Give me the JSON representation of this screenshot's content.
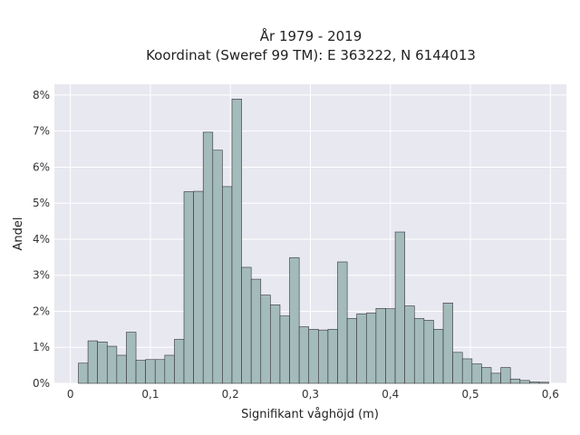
{
  "chart_data": {
    "type": "bar",
    "title": "År 1979 - 2019",
    "subtitle": "Koordinat (Sweref 99 TM): E 363222, N 6144013",
    "xlabel": "Signifikant våghöjd (m)",
    "ylabel": "Andel",
    "xlim": [
      -0.02,
      0.62
    ],
    "ylim": [
      0,
      8.3
    ],
    "x_ticks": [
      0,
      0.1,
      0.2,
      0.3,
      0.4,
      0.5,
      0.6
    ],
    "x_tick_labels": [
      "0",
      "0,1",
      "0,2",
      "0,3",
      "0,4",
      "0,5",
      "0,6"
    ],
    "y_ticks": [
      0,
      1,
      2,
      3,
      4,
      5,
      6,
      7,
      8
    ],
    "y_tick_labels": [
      "0%",
      "1%",
      "2%",
      "3%",
      "4%",
      "5%",
      "6%",
      "7%",
      "8%"
    ],
    "bin_width": 0.012,
    "bins_start": [
      0.01,
      0.022,
      0.034,
      0.046,
      0.058,
      0.07,
      0.082,
      0.094,
      0.106,
      0.118,
      0.13,
      0.142,
      0.154,
      0.166,
      0.178,
      0.19,
      0.202,
      0.214,
      0.226,
      0.238,
      0.25,
      0.262,
      0.274,
      0.286,
      0.298,
      0.31,
      0.322,
      0.334,
      0.346,
      0.358,
      0.37,
      0.382,
      0.394,
      0.406,
      0.418,
      0.43,
      0.442,
      0.454,
      0.466,
      0.478,
      0.49,
      0.502,
      0.514,
      0.526,
      0.538,
      0.55,
      0.562,
      0.574,
      0.586
    ],
    "values": [
      0.56,
      1.18,
      1.15,
      1.03,
      0.78,
      1.42,
      0.64,
      0.66,
      0.66,
      0.78,
      1.22,
      5.32,
      5.33,
      6.97,
      6.47,
      5.46,
      7.89,
      3.22,
      2.89,
      2.45,
      2.18,
      1.87,
      3.49,
      1.57,
      1.5,
      1.48,
      1.5,
      3.37,
      1.8,
      1.93,
      1.95,
      2.08,
      2.07,
      4.2,
      2.15,
      1.8,
      1.75,
      1.5,
      2.23,
      0.86,
      0.68,
      0.54,
      0.44,
      0.28,
      0.44,
      0.12,
      0.08,
      0.04,
      0.03
    ],
    "grid": true,
    "bar_color": "#a4bbbb",
    "bar_edge_color": "#333333",
    "plot_background": "#e8e8f0"
  }
}
